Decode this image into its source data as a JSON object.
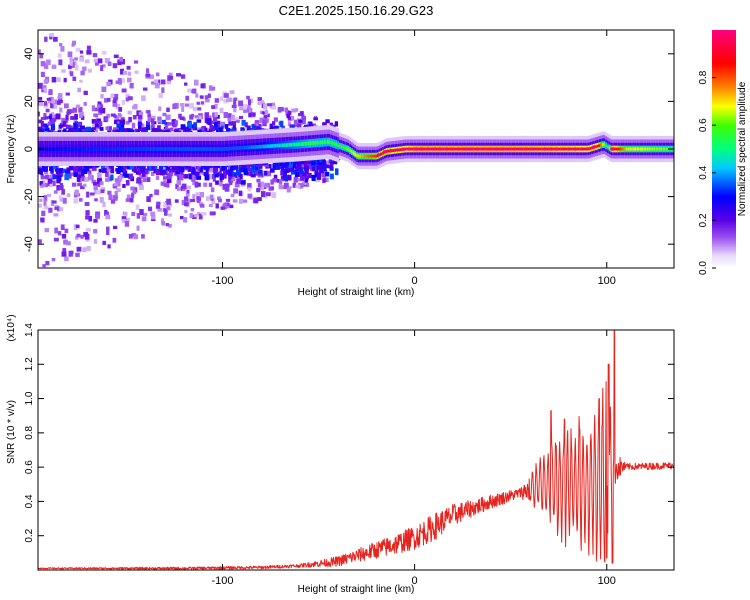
{
  "title": "C2E1.2025.150.16.29.G23",
  "chart_data": [
    {
      "type": "heatmap",
      "title": "C2E1.2025.150.16.29.G23",
      "xlabel": "Height of straight line (km)",
      "ylabel": "Frequency (Hz)",
      "xlim": [
        -196,
        135
      ],
      "ylim": [
        -50,
        50
      ],
      "x_ticks": [
        -100,
        0,
        100
      ],
      "y_ticks": [
        40,
        20,
        0,
        -20,
        -40
      ],
      "grid": false,
      "colorbar": {
        "label": "Normalized spectral amplitude",
        "range": [
          0,
          1
        ],
        "ticks": [
          "0.0",
          "0.2",
          "0.4",
          "0.6",
          "0.8"
        ],
        "colors": [
          "#ffffff",
          "#e8dcfa",
          "#9a4cf0",
          "#5b00e6",
          "#0000ff",
          "#00c8ff",
          "#00ff80",
          "#40ff00",
          "#ffff00",
          "#ff8000",
          "#ff0000",
          "#ff0080"
        ]
      },
      "ridge_center_hz": [
        {
          "x": -196,
          "y": 0
        },
        {
          "x": -150,
          "y": 0
        },
        {
          "x": -100,
          "y": 0
        },
        {
          "x": -80,
          "y": 1
        },
        {
          "x": -60,
          "y": 2
        },
        {
          "x": -45,
          "y": 3
        },
        {
          "x": -35,
          "y": 0
        },
        {
          "x": -30,
          "y": -3
        },
        {
          "x": -20,
          "y": -3
        },
        {
          "x": -15,
          "y": -1
        },
        {
          "x": -5,
          "y": 0
        },
        {
          "x": 20,
          "y": 0
        },
        {
          "x": 60,
          "y": 0
        },
        {
          "x": 90,
          "y": 0
        },
        {
          "x": 98,
          "y": 2
        },
        {
          "x": 102,
          "y": 0
        },
        {
          "x": 135,
          "y": 0
        }
      ],
      "ridge_amplitude": [
        {
          "x": -196,
          "y": 0.3
        },
        {
          "x": -120,
          "y": 0.35
        },
        {
          "x": -90,
          "y": 0.35
        },
        {
          "x": -70,
          "y": 0.45
        },
        {
          "x": -55,
          "y": 0.55
        },
        {
          "x": -40,
          "y": 0.55
        },
        {
          "x": -30,
          "y": 0.7
        },
        {
          "x": -20,
          "y": 0.85
        },
        {
          "x": -5,
          "y": 0.9
        },
        {
          "x": 0,
          "y": 0.95
        },
        {
          "x": 50,
          "y": 0.95
        },
        {
          "x": 95,
          "y": 0.9
        },
        {
          "x": 100,
          "y": 0.5
        },
        {
          "x": 103,
          "y": 0.95
        },
        {
          "x": 110,
          "y": 0.7
        },
        {
          "x": 135,
          "y": 0.6
        }
      ]
    },
    {
      "type": "line",
      "xlabel": "Height of straight line (km)",
      "ylabel": "SNR (10 * v/v)",
      "y_multiplier": "(x10⁴)",
      "xlim": [
        -196,
        135
      ],
      "ylim": [
        0,
        1.4
      ],
      "x_ticks": [
        -100,
        0,
        100
      ],
      "y_ticks": [
        "0.2",
        "0.4",
        "0.6",
        "0.8",
        "1.0",
        "1.2",
        "1.4"
      ],
      "grid": false,
      "color": "#e8221c",
      "series": [
        {
          "envelope_mean": [
            {
              "x": -196,
              "y": 0.01
            },
            {
              "x": -120,
              "y": 0.01
            },
            {
              "x": -80,
              "y": 0.015
            },
            {
              "x": -60,
              "y": 0.025
            },
            {
              "x": -40,
              "y": 0.05
            },
            {
              "x": -25,
              "y": 0.1
            },
            {
              "x": -10,
              "y": 0.15
            },
            {
              "x": 0,
              "y": 0.19
            },
            {
              "x": 10,
              "y": 0.25
            },
            {
              "x": 20,
              "y": 0.32
            },
            {
              "x": 40,
              "y": 0.4
            },
            {
              "x": 55,
              "y": 0.45
            },
            {
              "x": 65,
              "y": 0.5
            },
            {
              "x": 80,
              "y": 0.5
            },
            {
              "x": 100,
              "y": 0.5
            },
            {
              "x": 105,
              "y": 0.6
            },
            {
              "x": 135,
              "y": 0.61
            }
          ],
          "envelope_amplitude": [
            {
              "x": -196,
              "y": 0.003
            },
            {
              "x": -60,
              "y": 0.01
            },
            {
              "x": -40,
              "y": 0.03
            },
            {
              "x": -20,
              "y": 0.05
            },
            {
              "x": 10,
              "y": 0.08
            },
            {
              "x": 30,
              "y": 0.05
            },
            {
              "x": 55,
              "y": 0.03
            },
            {
              "x": 65,
              "y": 0.15
            },
            {
              "x": 75,
              "y": 0.3
            },
            {
              "x": 90,
              "y": 0.35
            },
            {
              "x": 100,
              "y": 0.6
            },
            {
              "x": 104,
              "y": 0.1
            },
            {
              "x": 110,
              "y": 0.02
            },
            {
              "x": 135,
              "y": 0.02
            }
          ],
          "peaks": [
            {
              "x": 71,
              "y": 0.93
            },
            {
              "x": 78,
              "y": 0.88
            },
            {
              "x": 86,
              "y": 0.82
            },
            {
              "x": 96,
              "y": 1.0
            },
            {
              "x": 101,
              "y": 1.2
            },
            {
              "x": 104,
              "y": 1.41
            }
          ],
          "troughs": [
            {
              "x": 100,
              "y": 0.07
            },
            {
              "x": 103,
              "y": 0.04
            }
          ]
        }
      ]
    }
  ]
}
